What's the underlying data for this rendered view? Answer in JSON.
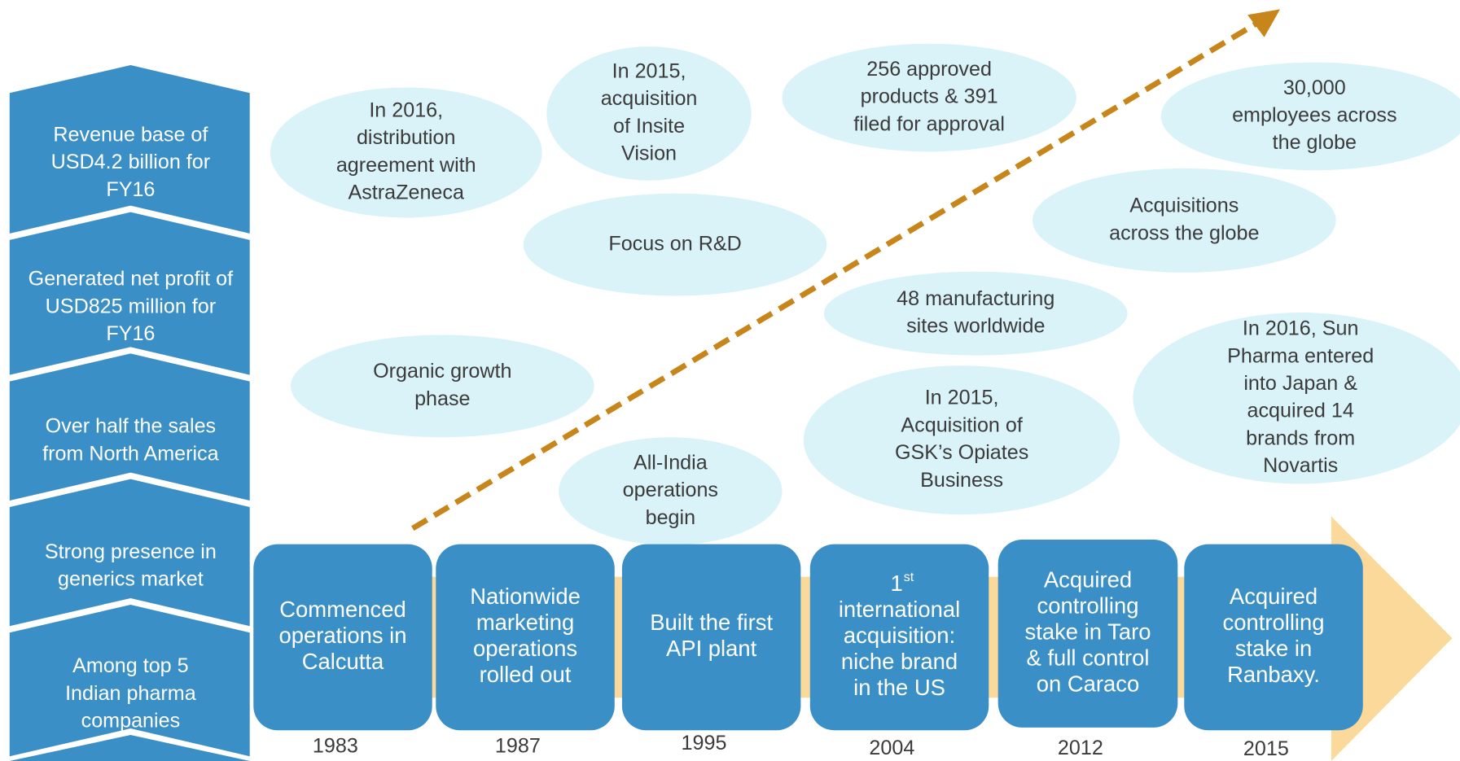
{
  "left_panel": [
    {
      "lines": [
        "Revenue base of",
        "USD4.2 billion for",
        "FY16"
      ]
    },
    {
      "lines": [
        "Generated net profit of",
        "USD825 million for",
        "FY16"
      ]
    },
    {
      "lines": [
        "Over half the sales",
        "from North America"
      ]
    },
    {
      "lines": [
        "Strong presence in",
        "generics market"
      ]
    },
    {
      "lines": [
        "Among top 5",
        "Indian pharma",
        "companies"
      ]
    }
  ],
  "milestones": [
    {
      "year": "1983",
      "lines": [
        "Commenced",
        "operations in",
        "Calcutta"
      ]
    },
    {
      "year": "1987",
      "lines": [
        "Nationwide",
        "marketing",
        "operations",
        "rolled out"
      ]
    },
    {
      "year": "1995",
      "lines": [
        "Built the first",
        "API plant"
      ]
    },
    {
      "year": "2004",
      "ordinal": "1",
      "ordinal_suffix": "st",
      "lines": [
        "international",
        "acquisition:",
        "niche brand",
        "in the US"
      ]
    },
    {
      "year": "2012",
      "lines": [
        "Acquired",
        "controlling",
        "stake in Taro",
        "& full control",
        "on Caraco"
      ]
    },
    {
      "year": "2015",
      "lines": [
        "Acquired",
        "controlling",
        "stake in",
        "Ranbaxy."
      ]
    }
  ],
  "highlights": [
    {
      "lines": [
        "In 2016,",
        "distribution",
        "agreement with",
        "AstraZeneca"
      ]
    },
    {
      "lines": [
        "In 2015,",
        "acquisition",
        "of Insite",
        "Vision"
      ]
    },
    {
      "lines": [
        "256 approved",
        "products & 391",
        "filed for approval"
      ]
    },
    {
      "lines": [
        "30,000",
        "employees across",
        "the globe"
      ]
    },
    {
      "lines": [
        "Focus on R&D"
      ]
    },
    {
      "lines": [
        "Acquisitions",
        "across the globe"
      ]
    },
    {
      "lines": [
        "48 manufacturing",
        "sites worldwide"
      ]
    },
    {
      "lines": [
        "Organic growth",
        "phase"
      ]
    },
    {
      "lines": [
        "In 2015,",
        "Acquisition of",
        "GSK’s Opiates",
        "Business"
      ]
    },
    {
      "lines": [
        "In 2016, Sun",
        "Pharma entered",
        "into Japan &",
        "acquired 14",
        "brands from",
        "Novartis"
      ]
    },
    {
      "lines": [
        "All-India",
        "operations",
        "begin"
      ]
    }
  ]
}
